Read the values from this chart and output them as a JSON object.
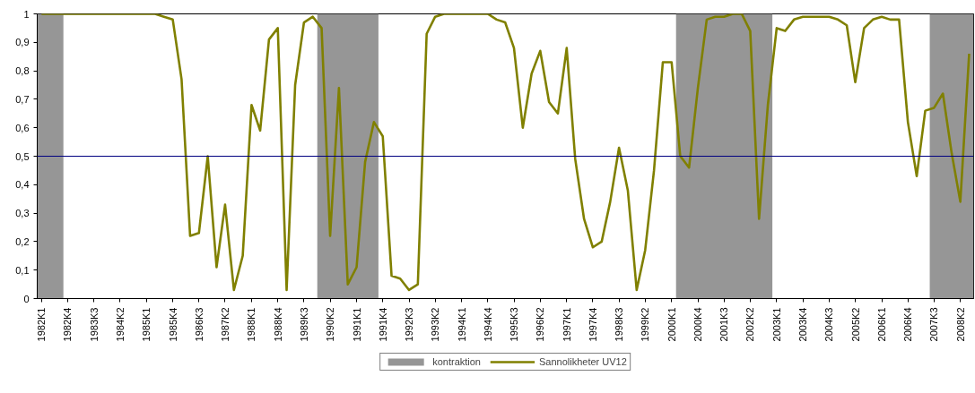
{
  "chart_data": {
    "type": "line",
    "x": [
      "1982-02-15",
      "1982-05-15",
      "1982-08-15",
      "1982-11-15",
      "1983-02-15",
      "1983-05-15",
      "1983-08-15",
      "1983-11-15",
      "1984-02-15",
      "1984-05-15",
      "1984-08-15",
      "1984-11-15",
      "1985-02-15",
      "1985-05-15",
      "1985-08-15",
      "1985-11-15",
      "1986-02-15",
      "1986-05-15",
      "1986-08-15",
      "1986-11-15",
      "1987-02-15",
      "1987-05-15",
      "1987-08-15",
      "1987-11-15",
      "1988-02-15",
      "1988-05-15",
      "1988-08-15",
      "1988-11-15",
      "1989-02-15",
      "1989-05-15",
      "1989-08-15",
      "1989-11-15",
      "1990-02-15",
      "1990-05-15",
      "1990-08-15",
      "1990-11-15",
      "1991-02-15",
      "1991-05-15",
      "1991-08-15",
      "1991-11-15",
      "1992-02-15",
      "1992-05-15",
      "1992-08-15",
      "1992-11-15",
      "1993-02-15",
      "1993-05-15",
      "1993-08-15",
      "1993-11-15",
      "1994-02-15",
      "1994-05-15",
      "1994-08-15",
      "1994-11-15",
      "1995-02-15",
      "1995-05-15",
      "1995-08-15",
      "1995-11-15",
      "1996-02-15",
      "1996-05-15",
      "1996-08-15",
      "1996-11-15",
      "1997-02-15",
      "1997-05-15",
      "1997-08-15",
      "1997-11-15",
      "1998-02-15",
      "1998-05-15",
      "1998-08-15",
      "1998-11-15",
      "1999-02-15",
      "1999-05-15",
      "1999-08-15",
      "1999-11-15",
      "2000-02-15",
      "2000-05-15",
      "2000-08-15",
      "2000-11-15",
      "2001-02-15",
      "2001-05-15",
      "2001-08-15",
      "2001-11-15",
      "2002-02-15",
      "2002-05-15",
      "2002-08-15",
      "2002-11-15",
      "2003-02-15",
      "2003-05-15",
      "2003-08-15",
      "2003-11-15",
      "2004-02-15",
      "2004-05-15",
      "2004-08-15",
      "2004-11-15",
      "2005-02-15",
      "2005-05-15",
      "2005-08-15",
      "2005-11-15",
      "2006-02-15",
      "2006-05-15",
      "2006-08-15",
      "2006-11-15",
      "2007-02-15",
      "2007-05-15",
      "2007-08-15",
      "2007-11-15",
      "2008-02-15",
      "2008-05-15",
      "2008-08-15"
    ],
    "series": [
      {
        "name": "Sannolikheter UV12",
        "color": "#808000",
        "values": [
          1.0,
          1.0,
          1.0,
          1.0,
          1.0,
          1.0,
          1.0,
          1.0,
          1.0,
          1.0,
          1.0,
          1.0,
          1.0,
          1.0,
          0.99,
          0.98,
          0.77,
          0.22,
          0.23,
          0.5,
          0.11,
          0.33,
          0.03,
          0.15,
          0.68,
          0.59,
          0.91,
          0.95,
          0.03,
          0.75,
          0.97,
          0.99,
          0.95,
          0.22,
          0.74,
          0.05,
          0.11,
          0.48,
          0.62,
          0.57,
          0.08,
          0.07,
          0.03,
          0.05,
          0.93,
          0.99,
          1.0,
          1.0,
          1.0,
          1.0,
          1.0,
          1.0,
          0.98,
          0.97,
          0.88,
          0.6,
          0.79,
          0.87,
          0.69,
          0.65,
          0.88,
          0.49,
          0.28,
          0.18,
          0.2,
          0.34,
          0.53,
          0.38,
          0.03,
          0.17,
          0.45,
          0.83,
          0.83,
          0.5,
          0.46,
          0.74,
          0.98,
          0.99,
          0.99,
          1.0,
          1.0,
          0.94,
          0.28,
          0.68,
          0.95,
          0.94,
          0.98,
          0.99,
          0.99,
          0.99,
          0.99,
          0.98,
          0.96,
          0.76,
          0.95,
          0.98,
          0.99,
          0.98,
          0.98,
          0.62,
          0.43,
          0.66,
          0.67,
          0.72,
          0.51,
          0.34,
          0.86
        ]
      }
    ],
    "xlim": [
      "1982-01-01",
      "2008-10-01"
    ],
    "xticks": [
      {
        "value": "1982-02-15",
        "label": "1982K1"
      },
      {
        "value": "1982-11-15",
        "label": "1982K4"
      },
      {
        "value": "1983-08-15",
        "label": "1983K3"
      },
      {
        "value": "1984-05-15",
        "label": "1984K2"
      },
      {
        "value": "1985-02-15",
        "label": "1985K1"
      },
      {
        "value": "1985-11-15",
        "label": "1985K4"
      },
      {
        "value": "1986-08-15",
        "label": "1986K3"
      },
      {
        "value": "1987-05-15",
        "label": "1987K2"
      },
      {
        "value": "1988-02-15",
        "label": "1988K1"
      },
      {
        "value": "1988-11-15",
        "label": "1988K4"
      },
      {
        "value": "1989-08-15",
        "label": "1989K3"
      },
      {
        "value": "1990-05-15",
        "label": "1990K2"
      },
      {
        "value": "1991-02-15",
        "label": "1991K1"
      },
      {
        "value": "1991-11-15",
        "label": "1991K4"
      },
      {
        "value": "1992-08-15",
        "label": "1992K3"
      },
      {
        "value": "1993-05-15",
        "label": "1993K2"
      },
      {
        "value": "1994-02-15",
        "label": "1994K1"
      },
      {
        "value": "1994-11-15",
        "label": "1994K4"
      },
      {
        "value": "1995-08-15",
        "label": "1995K3"
      },
      {
        "value": "1996-05-15",
        "label": "1996K2"
      },
      {
        "value": "1997-02-15",
        "label": "1997K1"
      },
      {
        "value": "1997-11-15",
        "label": "1997K4"
      },
      {
        "value": "1998-08-15",
        "label": "1998K3"
      },
      {
        "value": "1999-05-15",
        "label": "1999K2"
      },
      {
        "value": "2000-02-15",
        "label": "2000K1"
      },
      {
        "value": "2000-11-15",
        "label": "2000K4"
      },
      {
        "value": "2001-08-15",
        "label": "2001K3"
      },
      {
        "value": "2002-05-15",
        "label": "2002K2"
      },
      {
        "value": "2003-02-15",
        "label": "2003K1"
      },
      {
        "value": "2003-11-15",
        "label": "2003K4"
      },
      {
        "value": "2004-08-15",
        "label": "2004K3"
      },
      {
        "value": "2005-05-15",
        "label": "2005K2"
      },
      {
        "value": "2006-02-15",
        "label": "2006K1"
      },
      {
        "value": "2006-11-15",
        "label": "2006K4"
      },
      {
        "value": "2007-08-15",
        "label": "2007K3"
      },
      {
        "value": "2008-05-15",
        "label": "2008K2"
      }
    ],
    "ylim": [
      0,
      1
    ],
    "yticks": [
      0,
      {
        "value": 0.1,
        "label": "0,1"
      },
      {
        "value": 0.2,
        "label": "0,2"
      },
      {
        "value": 0.3,
        "label": "0,3"
      },
      {
        "value": 0.4,
        "label": "0,4"
      },
      {
        "value": 0.5,
        "label": "0,5"
      },
      {
        "value": 0.6,
        "label": "0,6"
      },
      {
        "value": 0.7,
        "label": "0,7"
      },
      {
        "value": 0.8,
        "label": "0,8"
      },
      {
        "value": 0.9,
        "label": "0,9"
      },
      1
    ],
    "bands": [
      {
        "axis": "x",
        "from": "1982-01-01",
        "to": "1982-10-01",
        "label": "kontraktion",
        "color": "#969696"
      },
      {
        "axis": "x",
        "from": "1990-01-01",
        "to": "1991-10-01",
        "color": "#969696"
      },
      {
        "axis": "x",
        "from": "2000-04-01",
        "to": "2003-01-01",
        "color": "#969696"
      },
      {
        "axis": "x",
        "from": "2007-07-01",
        "to": "2008-10-01",
        "color": "#969696"
      }
    ],
    "ref_lines": [
      {
        "axis": "y",
        "value": 0.5,
        "color": "#000080"
      }
    ],
    "grid": false,
    "legend": "bottom"
  }
}
